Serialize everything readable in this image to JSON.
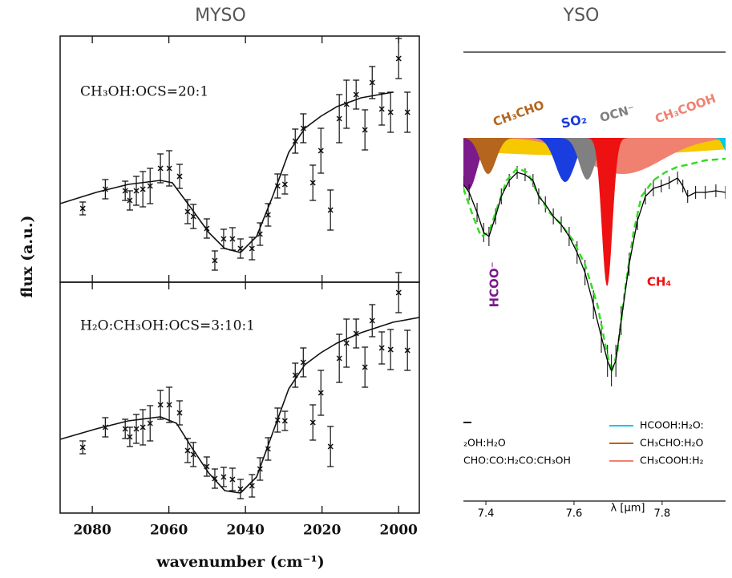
{
  "chart_data": [
    {
      "type": "errorbar-panels",
      "title": "MYSO",
      "xlabel": "wavenumber (cm⁻¹)",
      "ylabel": "flux (a.u.)",
      "xlim": [
        2088.4,
        1994.6
      ],
      "xticks": [
        2080,
        2060,
        2040,
        2020,
        2000
      ],
      "panels": [
        {
          "annotation": "CH₃OH:OCS=20:1",
          "ylim": [
            0,
            307
          ],
          "points": {
            "x": [
              2082.5,
              2076.6,
              2071.4,
              2070.2,
              2068.5,
              2066.8,
              2064.9,
              2062.2,
              2059.9,
              2057.2,
              2055.1,
              2053.6,
              2050.1,
              2048.0,
              2045.7,
              2043.4,
              2041.3,
              2038.3,
              2036.2,
              2034.1,
              2031.6,
              2029.7,
              2027.0,
              2024.9,
              2022.4,
              2020.3,
              2017.8,
              2015.5,
              2013.6,
              2011.1,
              2008.8,
              2006.9,
              2004.4,
              2002.1,
              2000.0,
              1997.7
            ],
            "values": [
              92,
              116,
              114,
              102,
              114,
              116,
              120,
              142,
              142,
              132,
              88,
              82,
              67,
              27,
              54,
              54,
              42,
              42,
              60,
              84,
              120,
              122,
              176,
              192,
              124,
              164,
              90,
              204,
              222,
              234,
              190,
              249,
              216,
              212,
              279,
              212
            ],
            "errors": [
              8,
              12,
              12,
              12,
              18,
              22,
              22,
              18,
              22,
              15,
              15,
              15,
              12,
              12,
              12,
              14,
              12,
              14,
              14,
              14,
              15,
              12,
              15,
              18,
              22,
              28,
              25,
              30,
              30,
              18,
              25,
              20,
              20,
              25,
              25,
              25
            ]
          },
          "fit": {
            "x": [
              2088.4,
              2079.0,
              2070.6,
              2062.2,
              2059.1,
              2054.9,
              2049.6,
              2045.4,
              2041.3,
              2037.1,
              2032.9,
              2028.7,
              2024.5,
              2020.3,
              2016.1,
              2009.8,
              2001.5
            ],
            "values": [
              98,
              112,
              122,
              127,
              124,
              97,
              62,
              42,
              37,
              57,
              107,
              162,
              192,
              207,
              219,
              230,
              237
            ]
          }
        },
        {
          "annotation": "H₂O:CH₃OH:OCS=3:10:1",
          "ylim": [
            0,
            288
          ],
          "points": {
            "x": [
              2082.5,
              2076.6,
              2071.4,
              2070.2,
              2068.5,
              2066.8,
              2064.9,
              2062.2,
              2059.9,
              2057.2,
              2055.1,
              2053.6,
              2050.1,
              2048.0,
              2045.7,
              2043.4,
              2041.3,
              2038.3,
              2036.2,
              2034.1,
              2031.6,
              2029.7,
              2027.0,
              2024.9,
              2022.4,
              2020.3,
              2017.8,
              2015.5,
              2013.6,
              2011.1,
              2008.8,
              2006.9,
              2004.4,
              2002.1,
              2000.0,
              1997.7
            ],
            "values": [
              82,
              107,
              105,
              95,
              105,
              107,
              112,
              135,
              135,
              125,
              78,
              73,
              58,
              43,
              45,
              42,
              30,
              34,
              55,
              80,
              116,
              115,
              172,
              188,
              113,
              150,
              83,
              193,
              212,
              224,
              182,
              240,
              206,
              204,
              275,
              203
            ],
            "errors": [
              8,
              12,
              12,
              12,
              18,
              22,
              22,
              18,
              22,
              15,
              15,
              15,
              12,
              12,
              12,
              14,
              12,
              14,
              14,
              14,
              15,
              12,
              15,
              18,
              22,
              28,
              25,
              30,
              30,
              18,
              25,
              20,
              20,
              25,
              25,
              25
            ]
          },
          "fit": {
            "x": [
              2088.4,
              2079.0,
              2070.6,
              2062.2,
              2058.0,
              2053.8,
              2049.6,
              2045.4,
              2041.3,
              2037.1,
              2032.9,
              2028.7,
              2024.5,
              2020.3,
              2016.1,
              2009.8,
              2001.5,
              1994.6
            ],
            "values": [
              92,
              105,
              115,
              120,
              112,
              80,
              50,
              28,
              25,
              45,
              100,
              155,
              185,
              200,
              212,
              225,
              238,
              244
            ]
          }
        }
      ]
    },
    {
      "type": "decomposition",
      "title": "YSO",
      "xlabel": "λ [μm]",
      "xlim": [
        7.349,
        7.944
      ],
      "xticks": [
        7.4,
        7.6,
        7.8
      ],
      "ylim": [
        560,
        0
      ],
      "baseline": 107,
      "components": [
        {
          "color": "#f5c800",
          "center": 7.62,
          "width": 0.35,
          "depth": 22
        },
        {
          "name": "CH₃COOH",
          "color": "#f08070",
          "center": 7.71,
          "width": 0.09,
          "depth": 45
        },
        {
          "name": "HCOO⁻",
          "color": "#7b1a8a",
          "center": 7.36,
          "width": 0.02,
          "depth": 65
        },
        {
          "name": "CH₃CHO",
          "color": "#b5651d",
          "center": 7.405,
          "width": 0.018,
          "depth": 45
        },
        {
          "name": "SO₂",
          "color": "#1a3de0",
          "center": 7.58,
          "width": 0.022,
          "depth": 55
        },
        {
          "name": "OCN⁻",
          "color": "#808080",
          "center": 7.63,
          "width": 0.018,
          "depth": 52
        },
        {
          "name": "CH₄",
          "color": "#ee1111",
          "center": 7.675,
          "width": 0.012,
          "depth": 185
        },
        {
          "color": "#00c8e6",
          "center": 7.95,
          "width": 0.01,
          "depth": 20
        }
      ],
      "observed": {
        "color": "#000000",
        "x": [
          7.349,
          7.362,
          7.38,
          7.395,
          7.407,
          7.422,
          7.435,
          7.453,
          7.471,
          7.489,
          7.507,
          7.52,
          7.535,
          7.553,
          7.571,
          7.589,
          7.607,
          7.625,
          7.644,
          7.662,
          7.676,
          7.685,
          7.695,
          7.707,
          7.725,
          7.744,
          7.762,
          7.78,
          7.798,
          7.816,
          7.835,
          7.847,
          7.858,
          7.876,
          7.898,
          7.922,
          7.944
        ],
        "values": [
          165,
          175,
          200,
          225,
          230,
          205,
          180,
          160,
          150,
          153,
          160,
          180,
          190,
          205,
          215,
          230,
          250,
          275,
          315,
          355,
          385,
          397,
          385,
          335,
          265,
          210,
          180,
          170,
          167,
          163,
          157,
          167,
          180,
          175,
          175,
          173,
          175
        ],
        "errors": [
          10,
          10,
          12,
          12,
          12,
          10,
          10,
          8,
          8,
          8,
          8,
          10,
          10,
          10,
          10,
          12,
          14,
          16,
          18,
          20,
          20,
          20,
          20,
          18,
          14,
          12,
          10,
          10,
          8,
          8,
          8,
          8,
          8,
          8,
          8,
          8,
          8
        ]
      },
      "fit": {
        "color": "#33dd22",
        "x": [
          7.349,
          7.371,
          7.389,
          7.407,
          7.425,
          7.447,
          7.471,
          7.495,
          7.516,
          7.544,
          7.571,
          7.598,
          7.625,
          7.653,
          7.671,
          7.685,
          7.698,
          7.716,
          7.735,
          7.753,
          7.78,
          7.807,
          7.835,
          7.862,
          7.898,
          7.944
        ],
        "values": [
          170,
          205,
          230,
          225,
          195,
          160,
          145,
          150,
          175,
          200,
          215,
          235,
          265,
          315,
          365,
          400,
          375,
          295,
          225,
          180,
          160,
          150,
          143,
          140,
          135,
          133
        ]
      },
      "legend": [
        {
          "label": "₂OH:H₂O"
        },
        {
          "label": "CHO:CO:H₂CO:CH₃OH"
        },
        {
          "label": "HCOOH:H₂O:",
          "color": "#00c8e6"
        },
        {
          "label": "CH₃CHO:H₂O",
          "color": "#c0601a"
        },
        {
          "label": "CH₃COOH:H₂",
          "color": "#f08070"
        }
      ]
    }
  ]
}
